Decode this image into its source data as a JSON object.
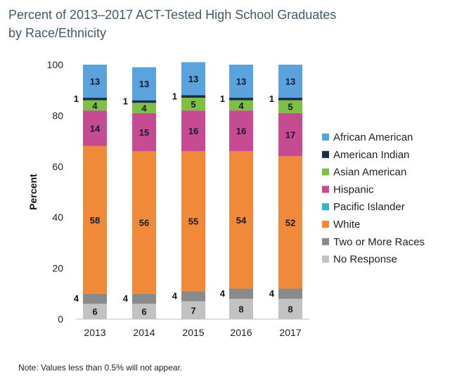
{
  "title_line1": "Percent of 2013–2017 ACT-Tested High School Graduates",
  "title_line2": "by Race/Ethnicity",
  "note": "Note: Values less than 0.5% will not appear.",
  "chart_data": {
    "type": "bar",
    "stacked": true,
    "ylabel": "Percent",
    "ylim": [
      0,
      100
    ],
    "yticks": [
      0,
      20,
      40,
      60,
      80,
      100
    ],
    "categories": [
      "2013",
      "2014",
      "2015",
      "2016",
      "2017"
    ],
    "series": [
      {
        "name": "No Response",
        "color": "#c2c2c2",
        "values": [
          6,
          6,
          7,
          8,
          8
        ],
        "labels": [
          "6",
          "6",
          "7",
          "8",
          "8"
        ]
      },
      {
        "name": "Two or More Races",
        "color": "#8a8a8a",
        "values": [
          4,
          4,
          4,
          4,
          4
        ],
        "labels": [
          "4",
          "4",
          "4",
          "4",
          "4"
        ]
      },
      {
        "name": "White",
        "color": "#f0893a",
        "values": [
          58,
          56,
          55,
          54,
          52
        ],
        "labels": [
          "58",
          "56",
          "55",
          "54",
          "52"
        ]
      },
      {
        "name": "Pacific Islander",
        "color": "#3bb4c6",
        "values": [
          0,
          0,
          0,
          0,
          0
        ],
        "labels": [
          "",
          "",
          "",
          "",
          ""
        ]
      },
      {
        "name": "Hispanic",
        "color": "#c54b92",
        "values": [
          14,
          15,
          16,
          16,
          17
        ],
        "labels": [
          "14",
          "15",
          "16",
          "16",
          "17"
        ]
      },
      {
        "name": "Asian American",
        "color": "#7dc043",
        "values": [
          4,
          4,
          5,
          4,
          5
        ],
        "labels": [
          "4",
          "4",
          "5",
          "4",
          "5"
        ]
      },
      {
        "name": "American Indian",
        "color": "#1b2b4a",
        "values": [
          1,
          1,
          1,
          1,
          1
        ],
        "labels": [
          "1",
          "1",
          "1",
          "1",
          "1"
        ]
      },
      {
        "name": "African American",
        "color": "#5ba3dc",
        "values": [
          13,
          13,
          13,
          13,
          13
        ],
        "labels": [
          "13",
          "13",
          "13",
          "13",
          "13"
        ]
      }
    ],
    "legend_order": [
      "African American",
      "American Indian",
      "Asian American",
      "Hispanic",
      "Pacific Islander",
      "White",
      "Two or More Races",
      "No Response"
    ],
    "legend_position": "right"
  }
}
